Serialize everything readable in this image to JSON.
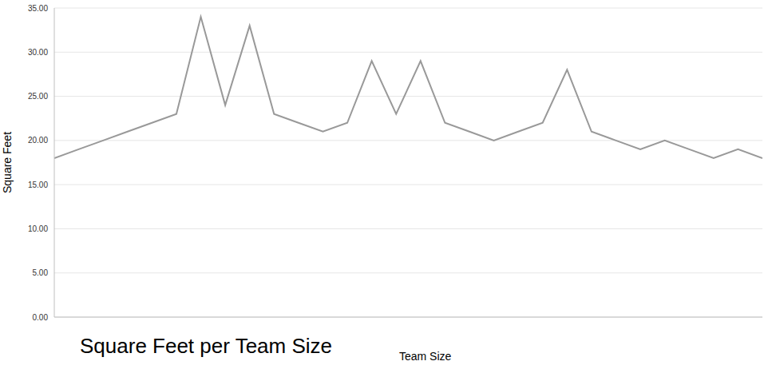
{
  "chart_data": {
    "type": "line",
    "title": "Square Feet per Team Size",
    "x_label": "Team Size",
    "y_label": "Square Feet",
    "x": [
      1,
      2,
      3,
      4,
      5,
      6,
      7,
      8,
      9,
      10,
      11,
      12,
      13,
      14,
      15,
      16,
      17,
      18,
      19,
      20,
      21,
      22,
      23,
      24,
      25,
      26,
      27,
      28,
      29,
      30
    ],
    "series": [
      {
        "name": "Square Feet",
        "color": "#999999",
        "values": [
          18,
          19,
          20,
          21,
          22,
          23,
          34,
          24,
          33,
          23,
          22,
          21,
          22,
          29,
          23,
          29,
          22,
          21,
          20,
          21,
          22,
          28,
          21,
          20,
          19,
          20,
          19,
          18,
          19,
          18
        ]
      }
    ],
    "xlim": [
      1,
      30
    ],
    "ylim": [
      0,
      35
    ],
    "yticks": [
      {
        "value": 0,
        "label": "0.00"
      },
      {
        "value": 5,
        "label": "5.00"
      },
      {
        "value": 10,
        "label": "10.00"
      },
      {
        "value": 15,
        "label": "15.00"
      },
      {
        "value": 20,
        "label": "20.00"
      },
      {
        "value": 25,
        "label": "25.00"
      },
      {
        "value": 30,
        "label": "30.00"
      },
      {
        "value": 35,
        "label": "35.00"
      }
    ],
    "grid": true,
    "tick_labels": "y"
  }
}
